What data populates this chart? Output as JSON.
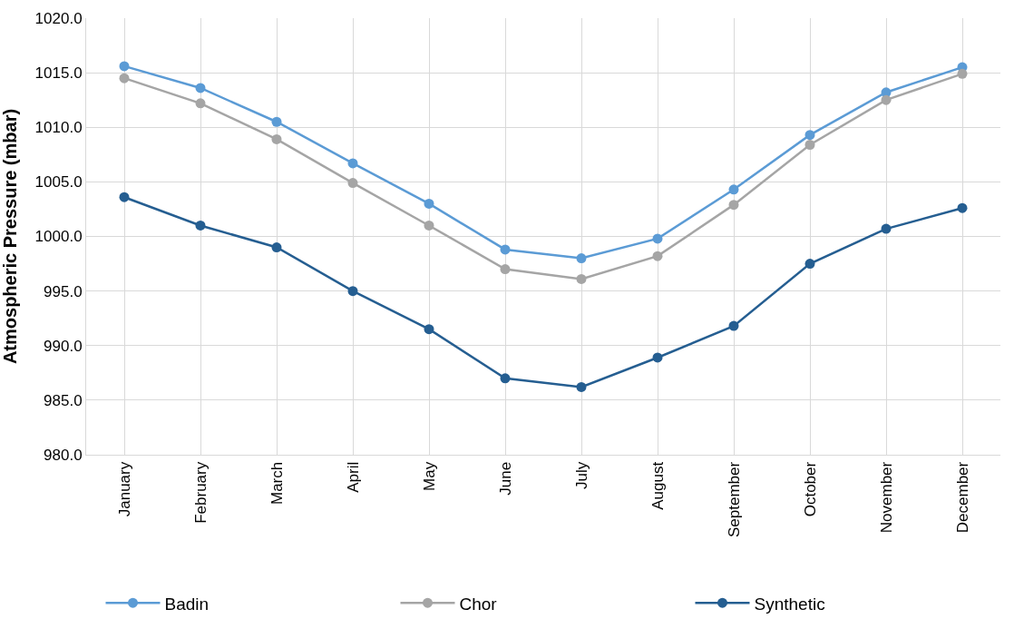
{
  "chart_data": {
    "type": "line",
    "ylabel": "Atmospheric Pressure (mbar)",
    "categories": [
      "January",
      "February",
      "March",
      "April",
      "May",
      "June",
      "July",
      "August",
      "September",
      "October",
      "November",
      "December"
    ],
    "series": [
      {
        "name": "Badin",
        "color": "#5b9bd5",
        "values": [
          1015.6,
          1013.6,
          1010.5,
          1006.7,
          1003.0,
          998.8,
          998.0,
          999.8,
          1004.3,
          1009.3,
          1013.2,
          1015.5
        ]
      },
      {
        "name": "Chor",
        "color": "#a5a5a5",
        "values": [
          1014.5,
          1012.2,
          1008.9,
          1004.9,
          1001.0,
          997.0,
          996.1,
          998.2,
          1002.9,
          1008.4,
          1012.5,
          1014.9
        ]
      },
      {
        "name": "Synthetic",
        "color": "#255e91",
        "values": [
          1003.6,
          1001.0,
          999.0,
          995.0,
          991.5,
          987.0,
          986.2,
          988.9,
          991.8,
          997.5,
          1000.7,
          1002.6
        ]
      }
    ],
    "ylim": [
      980,
      1020
    ],
    "yticks": [
      {
        "value": 980,
        "label": "980.0"
      },
      {
        "value": 985,
        "label": "985.0"
      },
      {
        "value": 990,
        "label": "990.0"
      },
      {
        "value": 995,
        "label": "995.0"
      },
      {
        "value": 1000,
        "label": "1000.0"
      },
      {
        "value": 1005,
        "label": "1005.0"
      },
      {
        "value": 1010,
        "label": "1010.0"
      },
      {
        "value": 1015,
        "label": "1015.0"
      },
      {
        "value": 1020,
        "label": "1020.0"
      }
    ],
    "grid": true,
    "legend": "bottom",
    "marker": "circle",
    "line_style": "solid"
  }
}
